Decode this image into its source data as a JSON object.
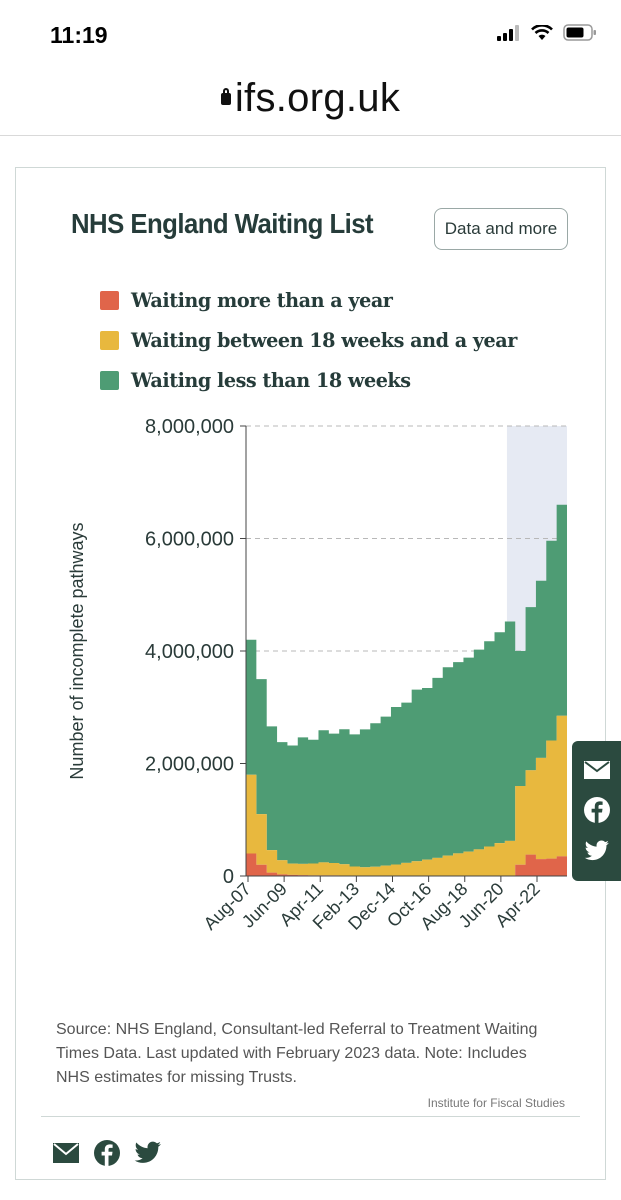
{
  "status_bar": {
    "time": "11:19"
  },
  "browser": {
    "url": "ifs.org.uk"
  },
  "card": {
    "title": "NHS England Waiting List",
    "data_button": "Data and more",
    "source": "Source: NHS England, Consultant-led Referral to Treatment Waiting Times Data. Last updated with February 2023 data. Note: Includes NHS estimates for missing Trusts.",
    "credit": "Institute for Fiscal Studies"
  },
  "colors": {
    "over_year": "#e0654a",
    "between": "#e8b83e",
    "under18": "#4e9c74",
    "highlight": "#e6eaf3",
    "text": "#263c3a"
  },
  "icons": [
    "mail-icon",
    "facebook-icon",
    "twitter-icon"
  ],
  "chart_data": {
    "type": "area",
    "title": "NHS England Waiting List",
    "ylabel": "Number of incomplete pathways",
    "ylim": [
      0,
      8000000
    ],
    "yticks": [
      0,
      2000000,
      4000000,
      6000000,
      8000000
    ],
    "ytick_labels": [
      "0",
      "2,000,000",
      "4,000,000",
      "6,000,000",
      "8,000,000"
    ],
    "xtick_labels": [
      "Aug-07",
      "Jun-09",
      "Apr-11",
      "Feb-13",
      "Dec-14",
      "Oct-16",
      "Aug-18",
      "Jun-20",
      "Apr-22"
    ],
    "grid": "horizontal dashed",
    "legend_position": "top",
    "highlight_period": [
      "Mar-20",
      "Feb-23"
    ],
    "x": [
      "Aug-07",
      "Feb-08",
      "Aug-08",
      "Feb-09",
      "Aug-09",
      "Feb-10",
      "Aug-10",
      "Feb-11",
      "Aug-11",
      "Feb-12",
      "Aug-12",
      "Feb-13",
      "Aug-13",
      "Feb-14",
      "Aug-14",
      "Feb-15",
      "Aug-15",
      "Feb-16",
      "Aug-16",
      "Feb-17",
      "Aug-17",
      "Feb-18",
      "Aug-18",
      "Feb-19",
      "Aug-19",
      "Feb-20",
      "Aug-20",
      "Feb-21",
      "Aug-21",
      "Feb-22",
      "Aug-22",
      "Feb-23"
    ],
    "series": [
      {
        "name": "Waiting more than a year",
        "values": [
          400000,
          200000,
          60000,
          30000,
          20000,
          15000,
          12000,
          12000,
          12000,
          10000,
          8000,
          6000,
          5000,
          4000,
          4000,
          3000,
          3000,
          2000,
          2000,
          2000,
          3000,
          3000,
          3500,
          4000,
          4000,
          4000,
          200000,
          380000,
          300000,
          310000,
          350000,
          350000
        ]
      },
      {
        "name": "Waiting between 18 weeks and a year",
        "values": [
          1400000,
          900000,
          400000,
          250000,
          200000,
          200000,
          210000,
          230000,
          220000,
          200000,
          160000,
          150000,
          160000,
          180000,
          200000,
          230000,
          260000,
          290000,
          320000,
          360000,
          400000,
          430000,
          470000,
          520000,
          580000,
          620000,
          1400000,
          1500000,
          1800000,
          2100000,
          2500000,
          2650000
        ]
      },
      {
        "name": "Waiting less than 18 weeks",
        "values": [
          2400000,
          2400000,
          2200000,
          2100000,
          2100000,
          2250000,
          2200000,
          2350000,
          2300000,
          2400000,
          2350000,
          2450000,
          2550000,
          2650000,
          2800000,
          2850000,
          3050000,
          3050000,
          3200000,
          3350000,
          3400000,
          3450000,
          3550000,
          3650000,
          3750000,
          3900000,
          2400000,
          2900000,
          3150000,
          3550000,
          3750000,
          4200000
        ]
      }
    ]
  }
}
